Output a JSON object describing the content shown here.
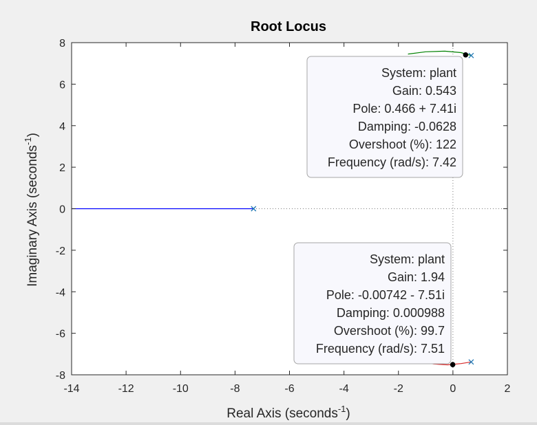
{
  "chart_data": {
    "type": "root-locus",
    "title": "Root Locus",
    "xlabel": {
      "text": "Real Axis (seconds",
      "sup": "-1",
      "close": ")"
    },
    "ylabel": {
      "text": "Imaginary Axis (seconds",
      "sup": "-1",
      "close": ")"
    },
    "xlim": [
      -14,
      2
    ],
    "ylim": [
      -8,
      8
    ],
    "xticks": [
      -14,
      -12,
      -10,
      -8,
      -6,
      -4,
      -2,
      0,
      2
    ],
    "yticks": [
      -8,
      -6,
      -4,
      -2,
      0,
      2,
      4,
      6,
      8
    ],
    "xtick_labels": [
      "-14",
      "-12",
      "-10",
      "-8",
      "-6",
      "-4",
      "-2",
      "0",
      "2"
    ],
    "ytick_labels": [
      "-8",
      "-6",
      "-4",
      "-2",
      "0",
      "2",
      "4",
      "6",
      "8"
    ],
    "colors": {
      "real_branch": "#0000ff",
      "upper_branch": "#008000",
      "lower_branch": "#d62728",
      "pole_marker": "#1f77b4",
      "selected_point": "#000000",
      "axes_background": "#ffffff",
      "figure_background": "#f0f0f0",
      "datatip_fill": "#f8f8fd",
      "datatip_border": "#a6a6a6"
    },
    "poles": [
      {
        "x": -7.32,
        "y": 0
      },
      {
        "x": 0.67,
        "y": 7.38
      },
      {
        "x": 0.67,
        "y": -7.38
      }
    ],
    "branches": [
      {
        "color_key": "real_branch",
        "points": [
          [
            -14,
            0
          ],
          [
            -7.32,
            0
          ]
        ]
      },
      {
        "color_key": "upper_branch",
        "points": [
          [
            -1.65,
            7.45
          ],
          [
            -1.0,
            7.56
          ],
          [
            -0.3,
            7.59
          ],
          [
            0.3,
            7.52
          ],
          [
            0.67,
            7.38
          ]
        ]
      },
      {
        "color_key": "lower_branch",
        "points": [
          [
            -1.3,
            -7.35
          ],
          [
            -0.7,
            -7.48
          ],
          [
            -0.2,
            -7.52
          ],
          [
            0.3,
            -7.46
          ],
          [
            0.67,
            -7.38
          ]
        ]
      }
    ],
    "reference_lines": [
      {
        "orientation": "horizontal",
        "value": 0
      },
      {
        "orientation": "vertical",
        "value": 0
      }
    ],
    "datatips": [
      {
        "point": {
          "x": 0.466,
          "y": 7.41
        },
        "anchor": "top-right",
        "lines": [
          "System: plant",
          "Gain: 0.543",
          "Pole: 0.466 + 7.41i",
          "Damping: -0.0628",
          "Overshoot (%): 122",
          "Frequency (rad/s): 7.42"
        ]
      },
      {
        "point": {
          "x": -0.00742,
          "y": -7.51
        },
        "anchor": "bottom-right",
        "lines": [
          "System: plant",
          "Gain: 1.94",
          "Pole: -0.00742 - 7.51i",
          "Damping: 0.000988",
          "Overshoot (%): 99.7",
          "Frequency (rad/s): 7.51"
        ]
      }
    ],
    "grid": false
  }
}
